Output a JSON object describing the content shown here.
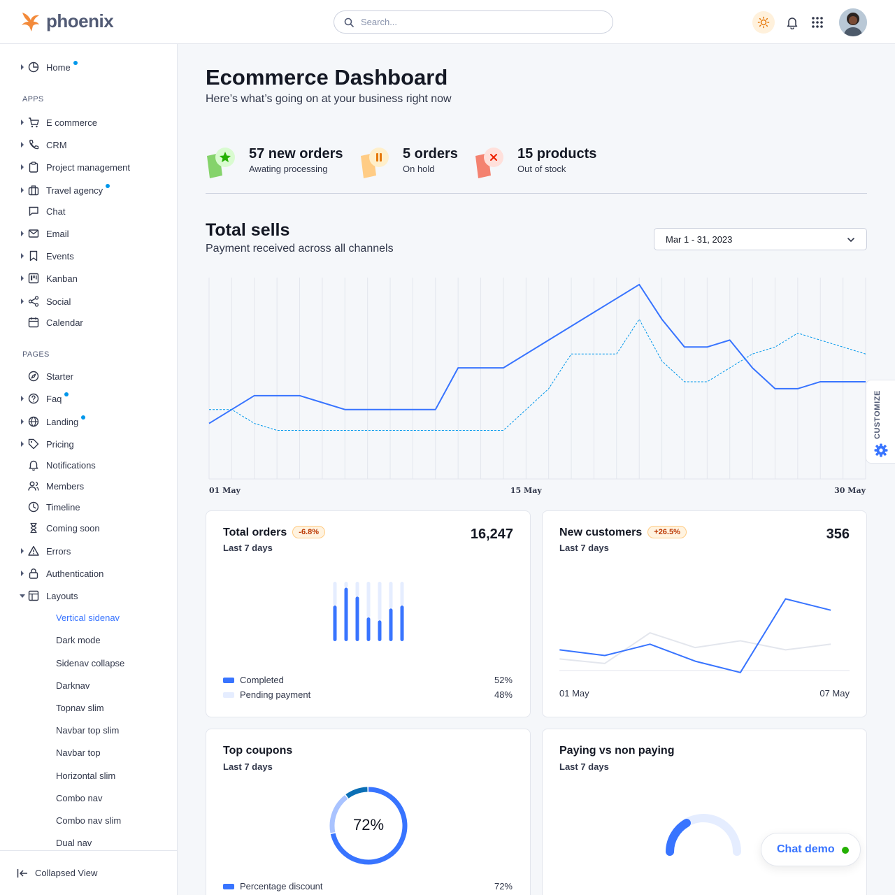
{
  "brand": {
    "name": "phoenix"
  },
  "search": {
    "placeholder": "Search..."
  },
  "sidebar": {
    "items": [
      {
        "label": "Home",
        "icon": "pie-chart-icon",
        "caret": true,
        "dot": true
      },
      {
        "label": "E commerce",
        "icon": "cart-icon",
        "caret": true,
        "dot": false
      },
      {
        "label": "CRM",
        "icon": "phone-icon",
        "caret": true,
        "dot": false
      },
      {
        "label": "Project management",
        "icon": "clipboard-icon",
        "caret": true,
        "dot": false
      },
      {
        "label": "Travel agency",
        "icon": "briefcase-icon",
        "caret": true,
        "dot": true
      },
      {
        "label": "Chat",
        "icon": "message-icon",
        "caret": false,
        "dot": false
      },
      {
        "label": "Email",
        "icon": "mail-icon",
        "caret": true,
        "dot": false
      },
      {
        "label": "Events",
        "icon": "bookmark-icon",
        "caret": true,
        "dot": false
      },
      {
        "label": "Kanban",
        "icon": "kanban-icon",
        "caret": true,
        "dot": false
      },
      {
        "label": "Social",
        "icon": "share-icon",
        "caret": true,
        "dot": false
      },
      {
        "label": "Calendar",
        "icon": "calendar-icon",
        "caret": false,
        "dot": false
      },
      {
        "label": "Starter",
        "icon": "compass-icon",
        "caret": false,
        "dot": false
      },
      {
        "label": "Faq",
        "icon": "help-circle-icon",
        "caret": true,
        "dot": true
      },
      {
        "label": "Landing",
        "icon": "globe-icon",
        "caret": true,
        "dot": true
      },
      {
        "label": "Pricing",
        "icon": "tag-icon",
        "caret": true,
        "dot": false
      },
      {
        "label": "Notifications",
        "icon": "bell-icon",
        "caret": false,
        "dot": false
      },
      {
        "label": "Members",
        "icon": "users-icon",
        "caret": false,
        "dot": false
      },
      {
        "label": "Timeline",
        "icon": "clock-icon",
        "caret": false,
        "dot": false
      },
      {
        "label": "Coming soon",
        "icon": "hourglass-icon",
        "caret": false,
        "dot": false
      },
      {
        "label": "Errors",
        "icon": "alert-triangle-icon",
        "caret": true,
        "dot": false
      },
      {
        "label": "Authentication",
        "icon": "lock-icon",
        "caret": true,
        "dot": false
      },
      {
        "label": "Layouts",
        "icon": "layout-icon",
        "caret": "open",
        "dot": false
      }
    ],
    "section_apps": "APPS",
    "section_pages": "PAGES",
    "sub_items": [
      {
        "label": "Vertical sidenav",
        "active": true
      },
      {
        "label": "Dark mode",
        "active": false
      },
      {
        "label": "Sidenav collapse",
        "active": false
      },
      {
        "label": "Darknav",
        "active": false
      },
      {
        "label": "Topnav slim",
        "active": false
      },
      {
        "label": "Navbar top slim",
        "active": false
      },
      {
        "label": "Navbar top",
        "active": false
      },
      {
        "label": "Horizontal slim",
        "active": false
      },
      {
        "label": "Combo nav",
        "active": false
      },
      {
        "label": "Combo nav slim",
        "active": false
      },
      {
        "label": "Dual nav",
        "active": false
      }
    ],
    "collapsed_label": "Collapsed View"
  },
  "header": {
    "title": "Ecommerce Dashboard",
    "subtitle": "Here’s what’s going on at your business right now"
  },
  "stats": [
    {
      "title": "57 new orders",
      "sub": "Awating processing",
      "icon": "star-icon",
      "color": "#25b003"
    },
    {
      "title": "5 orders",
      "sub": "On hold",
      "icon": "pause-icon",
      "color": "#e5780b"
    },
    {
      "title": "15 products",
      "sub": "Out of stock",
      "icon": "x-icon",
      "color": "#ec1f00"
    }
  ],
  "total_sells": {
    "title": "Total sells",
    "subtitle": "Payment received across all channels",
    "date_range": "Mar 1 - 31, 2023"
  },
  "chart_data": [
    {
      "type": "line",
      "x_tick_labels": [
        "01 May",
        "15 May",
        "30 May"
      ],
      "x": [
        1,
        2,
        3,
        4,
        5,
        6,
        7,
        8,
        9,
        10,
        11,
        12,
        13,
        14,
        15,
        16,
        17,
        18,
        19,
        20,
        21,
        22,
        23,
        24,
        25,
        26,
        27,
        28,
        29,
        30
      ],
      "series": [
        {
          "style": "solid",
          "color": "#3874ff",
          "values": [
            100,
            110,
            120,
            120,
            120,
            115,
            110,
            110,
            110,
            110,
            110,
            140,
            140,
            140,
            150,
            160,
            170,
            180,
            190,
            200,
            175,
            155,
            155,
            160,
            140,
            125,
            125,
            130,
            130,
            130
          ]
        },
        {
          "style": "dashed",
          "color": "#0097eb",
          "values": [
            110,
            110,
            100,
            95,
            95,
            95,
            95,
            95,
            95,
            95,
            95,
            95,
            95,
            95,
            110,
            125,
            150,
            150,
            150,
            175,
            145,
            130,
            130,
            140,
            150,
            155,
            165,
            160,
            155,
            150
          ]
        }
      ],
      "ylim": [
        60,
        205
      ],
      "grid": true
    },
    {
      "type": "bar",
      "title": "Total orders",
      "categories": [
        "1",
        "2",
        "3",
        "4",
        "5",
        "6",
        "7"
      ],
      "series": [
        {
          "name": "Completed",
          "color": "#3874ff",
          "values": [
            60,
            90,
            75,
            40,
            35,
            55,
            60
          ]
        },
        {
          "name": "Pending payment",
          "color": "#e5edff",
          "values": [
            40,
            10,
            25,
            60,
            65,
            45,
            40
          ]
        }
      ],
      "ylim": [
        0,
        100
      ]
    },
    {
      "type": "line",
      "title": "New customers",
      "x_tick_labels": [
        "01 May",
        "07 May"
      ],
      "x": [
        1,
        2,
        3,
        4,
        5,
        6,
        7
      ],
      "series": [
        {
          "color": "#3874ff",
          "values": [
            30,
            25,
            35,
            20,
            10,
            75,
            65
          ]
        },
        {
          "color": "#e3e6ed",
          "values": [
            22,
            18,
            45,
            32,
            38,
            30,
            35
          ]
        }
      ],
      "ylim": [
        0,
        100
      ]
    },
    {
      "type": "pie",
      "title": "Top coupons",
      "values": [
        72,
        18,
        10
      ],
      "colors": [
        "#3874ff",
        "#a9c3ff",
        "#0b6fb5"
      ]
    }
  ],
  "cards": {
    "orders": {
      "title": "Total orders",
      "badge": "-6.8%",
      "sub": "Last 7 days",
      "value": "16,247",
      "legend": [
        {
          "label": "Completed",
          "pct": "52%",
          "color": "#3874ff"
        },
        {
          "label": "Pending payment",
          "pct": "48%",
          "color": "#e5edff"
        }
      ]
    },
    "customers": {
      "title": "New customers",
      "badge": "+26.5%",
      "sub": "Last 7 days",
      "value": "356",
      "x_start": "01 May",
      "x_end": "07 May"
    },
    "coupons": {
      "title": "Top coupons",
      "sub": "Last 7 days",
      "center": "72%",
      "legend": [
        {
          "label": "Percentage discount",
          "pct": "72%",
          "color": "#3874ff"
        }
      ]
    },
    "paying": {
      "title": "Paying vs non paying",
      "sub": "Last 7 days"
    }
  },
  "customize": {
    "label": "CUSTOMIZE"
  },
  "chat_demo": {
    "label": "Chat demo"
  }
}
